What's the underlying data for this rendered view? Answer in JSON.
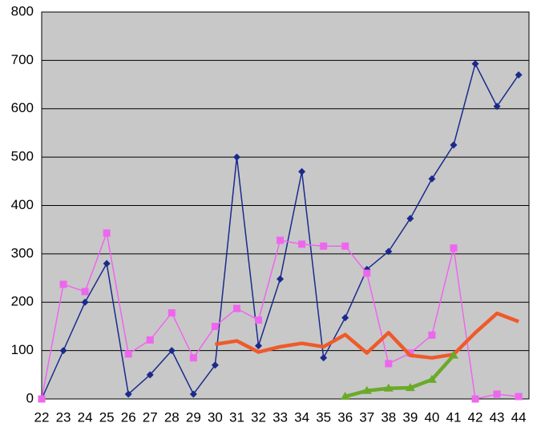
{
  "chart_data": {
    "type": "line",
    "categories": [
      "22",
      "23",
      "24",
      "25",
      "26",
      "27",
      "28",
      "29",
      "30",
      "31",
      "32",
      "33",
      "34",
      "35",
      "36",
      "37",
      "38",
      "39",
      "40",
      "41",
      "42",
      "43",
      "44"
    ],
    "series": [
      {
        "color": "#1a2a8c",
        "marker": "diamond",
        "width": 1.5,
        "values": [
          0,
          100,
          200,
          280,
          10,
          50,
          100,
          10,
          70,
          500,
          110,
          248,
          470,
          85,
          168,
          268,
          305,
          373,
          455,
          525,
          693,
          605,
          670
        ]
      },
      {
        "color": "#ee66ee",
        "marker": "square",
        "width": 1.5,
        "values": [
          0,
          237,
          222,
          343,
          93,
          122,
          178,
          85,
          150,
          187,
          163,
          328,
          320,
          316,
          316,
          260,
          73,
          95,
          132,
          312,
          0,
          10,
          5
        ]
      },
      {
        "color": "#ee5a2a",
        "marker": "none",
        "width": 4.5,
        "values": [
          null,
          null,
          null,
          null,
          null,
          null,
          null,
          null,
          113,
          120,
          97,
          108,
          115,
          108,
          133,
          95,
          137,
          90,
          85,
          92,
          137,
          177,
          160
        ]
      },
      {
        "color": "#6aaa2a",
        "marker": "triangle",
        "width": 4.5,
        "values": [
          null,
          null,
          null,
          null,
          null,
          null,
          null,
          null,
          null,
          null,
          null,
          null,
          null,
          null,
          5,
          17,
          22,
          23,
          40,
          90,
          null,
          null,
          null
        ]
      }
    ],
    "ylim": [
      0,
      800
    ],
    "yticks": [
      0,
      100,
      200,
      300,
      400,
      500,
      600,
      700,
      800
    ],
    "grid": true,
    "background": "#c8c8c8"
  }
}
